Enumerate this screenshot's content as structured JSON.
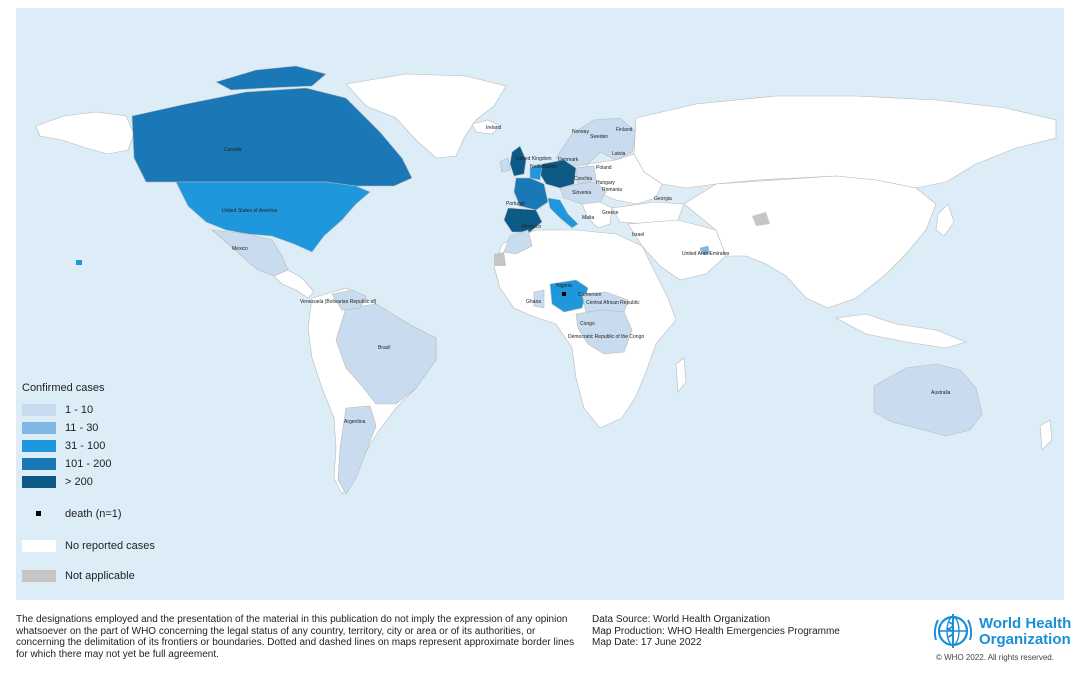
{
  "map": {
    "colors": {
      "water": "#dcedf8",
      "no_cases": "#ffffff",
      "not_applicable": "#c6c6c6",
      "c1_10": "#c9dcef",
      "c11_30": "#7fb6e2",
      "c31_100": "#1f97dc",
      "c101_200": "#1a78b6",
      "c200_plus": "#0d5a87",
      "border": "#b9b9b9"
    },
    "countries": [
      {
        "name": "Canada",
        "category": "101 - 200"
      },
      {
        "name": "United States of America",
        "category": "31 - 100"
      },
      {
        "name": "Mexico",
        "category": "1 - 10"
      },
      {
        "name": "Venezuela (Bolivarian Republic of)",
        "category": "1 - 10"
      },
      {
        "name": "Brazil",
        "category": "1 - 10"
      },
      {
        "name": "Argentina",
        "category": "1 - 10"
      },
      {
        "name": "Ireland",
        "category": "1 - 10"
      },
      {
        "name": "United Kingdom",
        "category": "> 200"
      },
      {
        "name": "Norway",
        "category": "1 - 10"
      },
      {
        "name": "Sweden",
        "category": "1 - 10"
      },
      {
        "name": "Finland",
        "category": "1 - 10"
      },
      {
        "name": "Denmark",
        "category": "1 - 10"
      },
      {
        "name": "Netherlands",
        "category": "31 - 100"
      },
      {
        "name": "Germany",
        "category": "> 200"
      },
      {
        "name": "Belgium",
        "category": "31 - 100"
      },
      {
        "name": "France",
        "category": "101 - 200"
      },
      {
        "name": "Portugal",
        "category": "> 200"
      },
      {
        "name": "Spain",
        "category": "> 200"
      },
      {
        "name": "Italy",
        "category": "31 - 100"
      },
      {
        "name": "Switzerland",
        "category": "31 - 100"
      },
      {
        "name": "Austria",
        "category": "1 - 10"
      },
      {
        "name": "Czechia",
        "category": "1 - 10"
      },
      {
        "name": "Poland",
        "category": "1 - 10"
      },
      {
        "name": "Latvia",
        "category": "1 - 10"
      },
      {
        "name": "Hungary",
        "category": "1 - 10"
      },
      {
        "name": "Romania",
        "category": "1 - 10"
      },
      {
        "name": "Slovenia",
        "category": "1 - 10"
      },
      {
        "name": "Malta",
        "category": "1 - 10"
      },
      {
        "name": "Greece",
        "category": "1 - 10"
      },
      {
        "name": "Georgia",
        "category": "1 - 10"
      },
      {
        "name": "Israel",
        "category": "1 - 10"
      },
      {
        "name": "United Arab Emirates",
        "category": "11 - 30"
      },
      {
        "name": "Morocco",
        "category": "1 - 10"
      },
      {
        "name": "Ghana",
        "category": "1 - 10"
      },
      {
        "name": "Nigeria",
        "category": "31 - 100"
      },
      {
        "name": "Cameroon",
        "category": "1 - 10"
      },
      {
        "name": "Central African Republic",
        "category": "1 - 10"
      },
      {
        "name": "Congo",
        "category": "1 - 10"
      },
      {
        "name": "Democratic Republic of the Congo",
        "category": "1 - 10"
      },
      {
        "name": "Australia",
        "category": "1 - 10"
      }
    ],
    "labels": {
      "canada": "Canada",
      "usa": "United States of America",
      "mexico": "Mexico",
      "venezuela": "Venezuela (Bolivarian Republic of)",
      "brazil": "Brazil",
      "argentina": "Argentina",
      "ireland": "Ireland",
      "uk": "United Kingdom",
      "norway": "Norway",
      "sweden": "Sweden",
      "finland": "Finland",
      "denmark": "Denmark",
      "netherlands": "Netherlands",
      "poland": "Poland",
      "latvia": "Latvia",
      "czechia": "Czechia",
      "hungary": "Hungary",
      "romania": "Romania",
      "slovenia": "Slovenia",
      "portugal": "Portugal",
      "malta": "Malta",
      "greece": "Greece",
      "georgia": "Georgia",
      "israel": "Israel",
      "uae": "United Arab Emirates",
      "morocco": "Morocco",
      "ghana": "Ghana",
      "nigeria": "Nigeria",
      "cameroon": "Cameroon",
      "car": "Central African Republic",
      "congo": "Congo",
      "drc": "Democratic Republic of the Congo",
      "australia": "Australia"
    }
  },
  "legend": {
    "title": "Confirmed cases",
    "items": [
      {
        "label": "1 - 10",
        "color": "#c9dcef"
      },
      {
        "label": "11 - 30",
        "color": "#7fb6e2"
      },
      {
        "label": "31 - 100",
        "color": "#1f97dc"
      },
      {
        "label": "101 - 200",
        "color": "#1a78b6"
      },
      {
        "label": "> 200",
        "color": "#0d5a87"
      }
    ],
    "death_label": "death (n=1)",
    "no_cases_label": "No reported cases",
    "not_applicable_label": "Not applicable"
  },
  "footer": {
    "disclaimer": "The designations employed and the presentation of the material in this publication do not imply the expression of any opinion whatsoever on the part of WHO concerning the legal status of any country, territory, city or area or of its authorities, or concerning the delimitation of its frontiers or boundaries. Dotted and dashed lines on maps represent approximate border lines for which there may not yet be full agreement.",
    "data_source": "Data Source: World Health Organization",
    "map_production": "Map Production: WHO Health Emergencies Programme",
    "map_date": "Map Date: 17 June 2022",
    "org_line1": "World Health",
    "org_line2": "Organization",
    "copyright": "© WHO 2022. All rights reserved."
  }
}
